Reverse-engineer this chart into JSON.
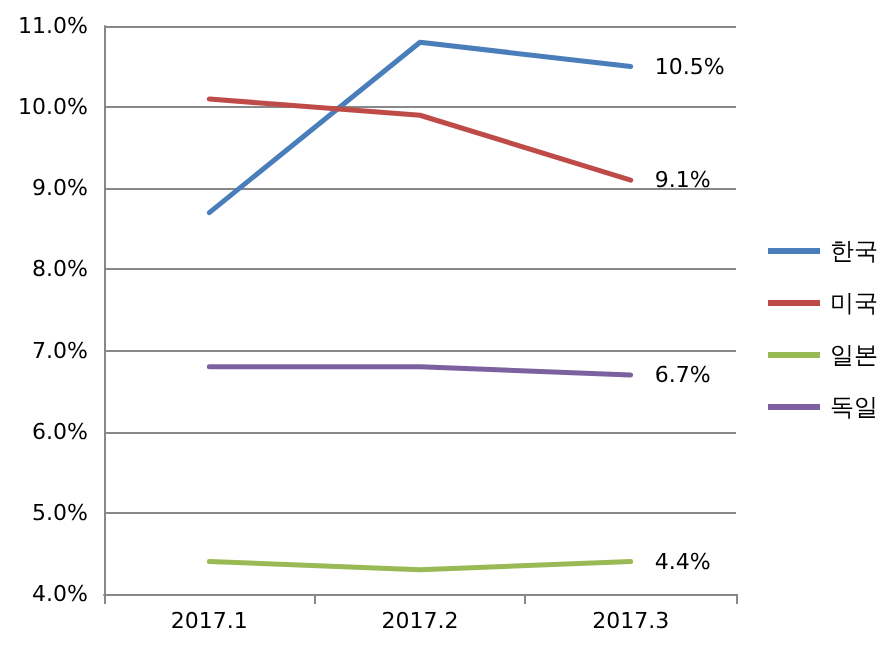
{
  "chart_data": {
    "type": "line",
    "categories": [
      "2017.1",
      "2017.2",
      "2017.3"
    ],
    "series": [
      {
        "name": "한국",
        "color": "#4a7ebb",
        "values": [
          8.7,
          10.8,
          10.5
        ],
        "value_labels": [
          null,
          null,
          "10.5%"
        ]
      },
      {
        "name": "미국",
        "color": "#be4b48",
        "values": [
          10.1,
          9.9,
          9.1
        ],
        "value_labels": [
          null,
          null,
          "9.1%"
        ]
      },
      {
        "name": "일본",
        "color": "#98b954",
        "values": [
          4.4,
          4.3,
          4.4
        ],
        "value_labels": [
          null,
          null,
          "4.4%"
        ]
      },
      {
        "name": "독일",
        "color": "#7d60a0",
        "values": [
          6.8,
          6.8,
          6.7
        ],
        "value_labels": [
          null,
          null,
          "6.7%"
        ]
      }
    ],
    "ylim": [
      4,
      11
    ],
    "yticks": [
      {
        "value": 4,
        "label": "4.0%"
      },
      {
        "value": 5,
        "label": "5.0%"
      },
      {
        "value": 6,
        "label": "6.0%"
      },
      {
        "value": 7,
        "label": "7.0%"
      },
      {
        "value": 8,
        "label": "8.0%"
      },
      {
        "value": 9,
        "label": "9.0%"
      },
      {
        "value": 10,
        "label": "10.0%"
      },
      {
        "value": 11,
        "label": "11.0%"
      }
    ],
    "grid": "y",
    "legend": "right",
    "marker": "none",
    "line_style": "solid"
  }
}
